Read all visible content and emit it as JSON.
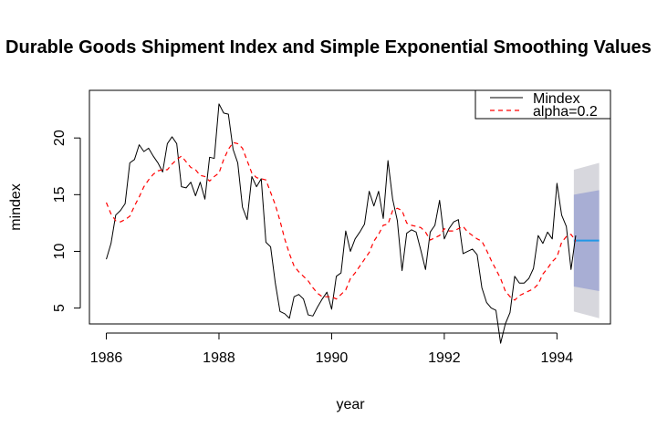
{
  "chart_data": {
    "type": "line",
    "title": "Durable Goods Shipment Index and Simple Exponential Smoothing Values",
    "xlabel": "year",
    "ylabel": "mindex",
    "xlim": [
      1985.7,
      1994.95
    ],
    "ylim": [
      3.6,
      24.2
    ],
    "x_ticks": [
      1986,
      1988,
      1990,
      1992,
      1994
    ],
    "y_ticks": [
      5,
      10,
      15,
      20
    ],
    "grid": false,
    "legend_position": "top-right",
    "start_year": 1986,
    "frequency": 12,
    "series": [
      {
        "name": "Mindex",
        "color": "#000000",
        "style": "solid",
        "values": [
          9.3,
          10.7,
          13.2,
          13.6,
          14.2,
          17.8,
          18.1,
          19.4,
          18.8,
          19.1,
          18.4,
          17.8,
          17.0,
          19.5,
          20.1,
          19.5,
          15.7,
          15.6,
          16.1,
          14.9,
          16.1,
          14.6,
          18.3,
          18.2,
          23.0,
          22.2,
          22.1,
          19.0,
          17.8,
          13.9,
          12.8,
          16.6,
          15.7,
          16.4,
          10.8,
          10.4,
          7.2,
          4.7,
          4.5,
          4.1,
          6.0,
          6.2,
          5.8,
          4.4,
          4.3,
          5.1,
          5.8,
          6.4,
          4.9,
          7.8,
          8.1,
          11.8,
          10.0,
          11.1,
          11.7,
          12.4,
          15.3,
          14.0,
          15.3,
          12.9,
          18.0,
          14.6,
          12.7,
          8.3,
          11.6,
          11.9,
          11.7,
          10.1,
          8.4,
          11.7,
          12.3,
          14.5,
          11.1,
          12.0,
          12.6,
          12.8,
          9.8,
          10.0,
          10.2,
          9.7,
          6.8,
          5.5,
          5.0,
          4.8,
          1.9,
          3.6,
          4.6,
          7.8,
          7.2,
          7.2,
          7.6,
          8.5,
          11.4,
          10.7,
          11.7,
          11.1,
          16.0,
          13.2,
          12.2,
          8.4,
          11.4
        ],
        "type": "line"
      },
      {
        "name": "alpha=0.2",
        "color": "#ff0000",
        "style": "dashed",
        "values": [
          14.3,
          13.3,
          12.7,
          12.6,
          12.8,
          13.1,
          14.0,
          14.8,
          15.7,
          16.3,
          16.8,
          17.1,
          17.2,
          17.2,
          17.7,
          18.1,
          18.4,
          17.9,
          17.4,
          17.2,
          16.7,
          16.6,
          16.2,
          16.6,
          16.9,
          18.1,
          19.0,
          19.6,
          19.5,
          19.1,
          18.0,
          16.9,
          16.5,
          16.4,
          16.3,
          15.2,
          14.1,
          12.7,
          11.1,
          9.8,
          8.7,
          8.2,
          7.8,
          7.4,
          6.8,
          6.3,
          6.0,
          6.0,
          6.0,
          5.8,
          6.2,
          6.6,
          7.6,
          8.1,
          8.7,
          9.3,
          9.9,
          10.9,
          11.5,
          12.3,
          12.4,
          13.6,
          13.8,
          13.6,
          12.5,
          12.3,
          12.2,
          12.1,
          11.7,
          11.0,
          11.2,
          11.4,
          12.0,
          11.8,
          11.8,
          12.0,
          12.2,
          11.7,
          11.4,
          11.1,
          10.9,
          10.1,
          9.2,
          8.4,
          7.6,
          6.5,
          6.0,
          5.7,
          6.1,
          6.3,
          6.5,
          6.7,
          7.1,
          8.0,
          8.5,
          9.1,
          9.5,
          10.8,
          11.3,
          11.5,
          10.9
        ]
      }
    ],
    "forecast": {
      "x": [
        1994.3,
        1994.75
      ],
      "mean": 10.95,
      "lower_80": [
        6.9,
        6.5
      ],
      "upper_80": [
        15.0,
        15.4
      ],
      "lower_95": [
        4.7,
        4.1
      ],
      "upper_95": [
        17.2,
        17.8
      ],
      "mean_color": "#2297e6",
      "band_80_color": "#a8aed4",
      "band_95_color": "#d7d7dd"
    }
  }
}
